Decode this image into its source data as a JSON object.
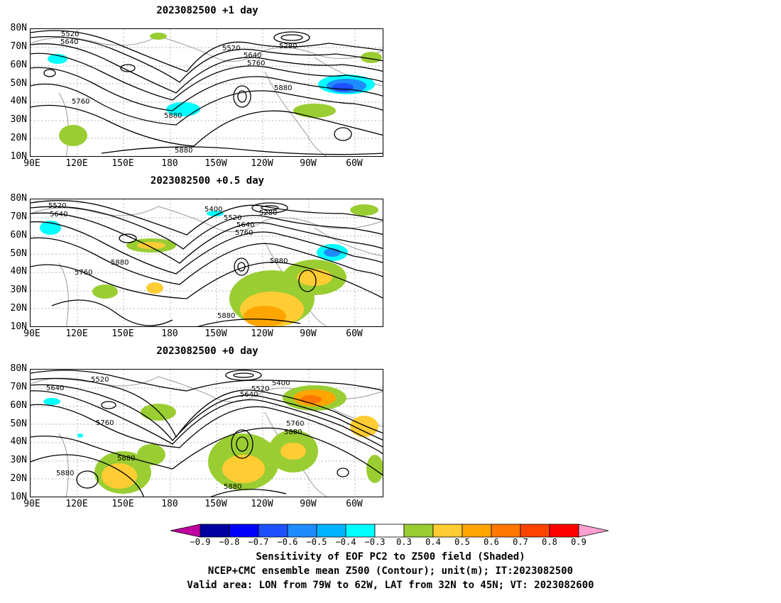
{
  "panels": [
    {
      "title": "2023082500  +1 day"
    },
    {
      "title": "2023082500  +0.5 day"
    },
    {
      "title": "2023082500  +0 day"
    }
  ],
  "lat_labels": [
    "80N",
    "70N",
    "60N",
    "50N",
    "40N",
    "30N",
    "20N",
    "10N"
  ],
  "lon_labels": [
    "90E",
    "120E",
    "150E",
    "180",
    "150W",
    "120W",
    "90W",
    "60W"
  ],
  "contour_labels": {
    "panel1": [
      "5520",
      "5640",
      "5520",
      "5640",
      "5760",
      "5280",
      "5880",
      "5760",
      "5880",
      "5880"
    ],
    "panel2": [
      "5520",
      "5640",
      "5400",
      "5520",
      "5280",
      "5640",
      "5760",
      "5880",
      "5760",
      "5880",
      "5880"
    ],
    "panel3": [
      "5520",
      "5640",
      "5640",
      "5520",
      "5400",
      "5760",
      "5760",
      "5880",
      "5880",
      "5880",
      "5880"
    ]
  },
  "colorbar": {
    "labels": [
      "-0.9",
      "-0.8",
      "-0.7",
      "-0.6",
      "-0.5",
      "-0.4",
      "-0.3",
      "0.3",
      "0.4",
      "0.5",
      "0.6",
      "0.7",
      "0.8",
      "0.9"
    ],
    "colors": [
      "#0000a0",
      "#0000ff",
      "#1e50ff",
      "#1e8cff",
      "#00b4ff",
      "#00ffff",
      "#ffffff",
      "#9acd32",
      "#ffcc33",
      "#ffa500",
      "#ff7700",
      "#ff4400",
      "#ff0000"
    ],
    "low_arrow_color": "#c000a0",
    "high_arrow_color": "#ffa0d0"
  },
  "captions": [
    "Sensitivity of EOF PC2 to Z500 field (Shaded)",
    "NCEP+CMC ensemble mean Z500 (Contour); unit(m); IT:2023082500",
    "Valid area: LON from 79W to 62W, LAT from 32N to 45N; VT: 2023082600"
  ]
}
